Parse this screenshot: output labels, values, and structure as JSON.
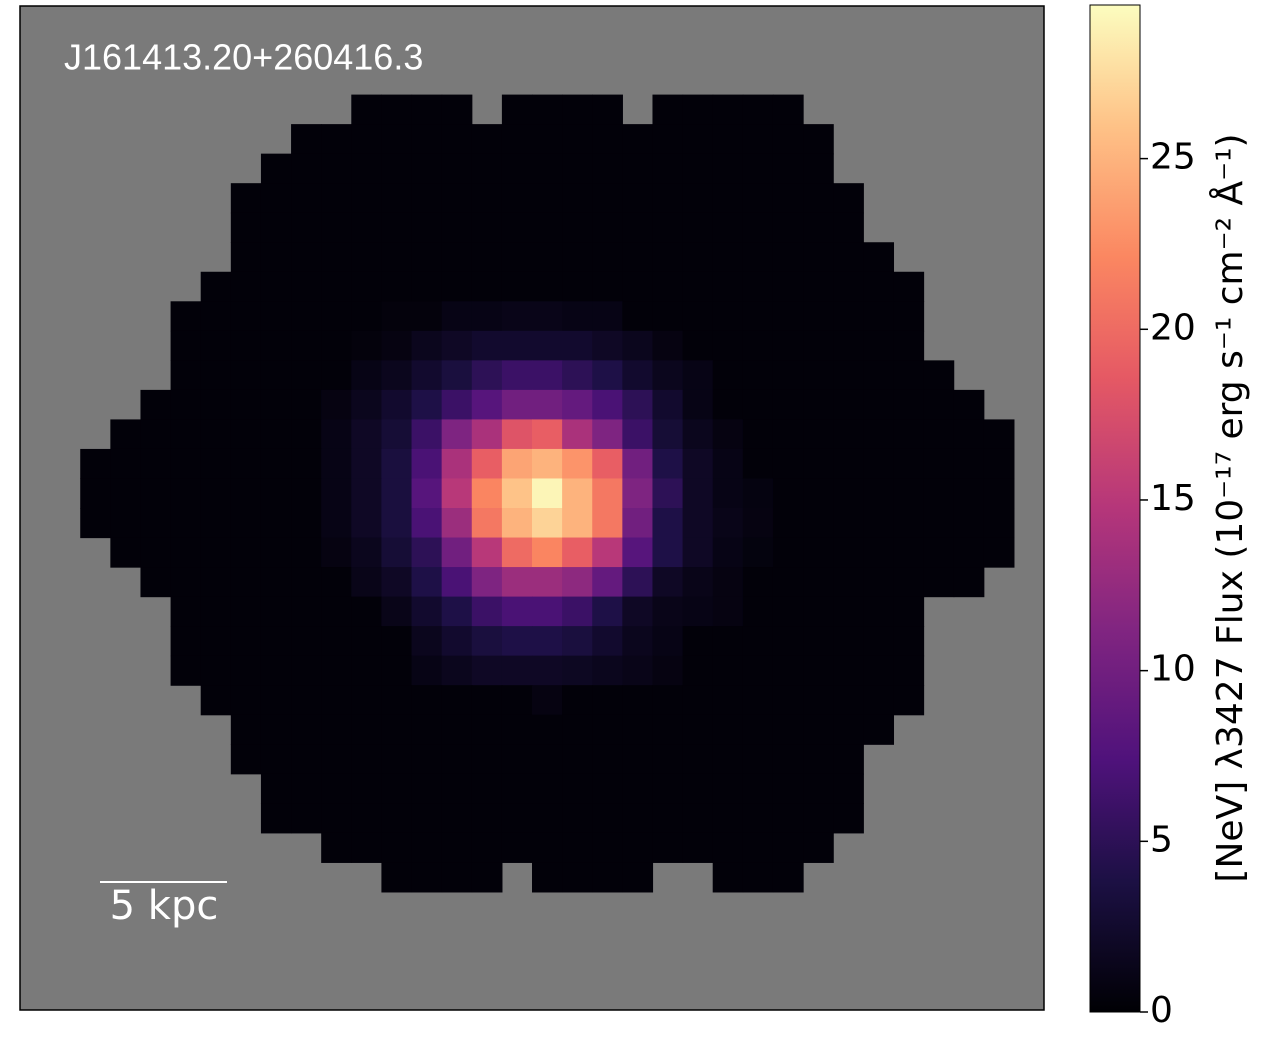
{
  "chart_data": {
    "type": "heatmap",
    "title": "J161413.20+260416.3",
    "scale_bar_label": "5 kpc",
    "colorbar_label": "[NeV] λ3427 Flux (10⁻¹⁷ erg s⁻¹ cm⁻² Å⁻¹)",
    "colormap": "magma",
    "nan_color": "#7a7a7a",
    "zlim": [
      0,
      29.5
    ],
    "zticks": [
      0,
      5,
      10,
      15,
      20,
      25
    ],
    "z": [
      [
        null,
        null,
        null,
        null,
        null,
        null,
        null,
        null,
        null,
        null,
        null,
        null,
        null,
        null,
        null,
        null,
        null,
        null,
        null,
        null,
        null,
        null,
        null,
        null,
        null,
        null,
        null,
        null,
        null,
        null,
        null,
        null,
        null,
        null
      ],
      [
        null,
        null,
        null,
        null,
        null,
        null,
        null,
        null,
        null,
        null,
        null,
        null,
        null,
        null,
        null,
        null,
        null,
        null,
        null,
        null,
        null,
        null,
        null,
        null,
        null,
        null,
        null,
        null,
        null,
        null,
        null,
        null,
        null,
        null
      ],
      [
        null,
        null,
        null,
        null,
        null,
        null,
        null,
        null,
        null,
        null,
        null,
        null,
        null,
        null,
        null,
        null,
        null,
        null,
        null,
        null,
        null,
        null,
        null,
        null,
        null,
        null,
        null,
        null,
        null,
        null,
        null,
        null,
        null,
        null
      ],
      [
        null,
        null,
        null,
        null,
        null,
        null,
        null,
        null,
        null,
        null,
        null,
        0.3,
        0.3,
        0.3,
        0.3,
        null,
        0.3,
        0.3,
        0.3,
        0.3,
        null,
        0.3,
        0.3,
        0.3,
        0.3,
        0.3,
        null,
        null,
        null,
        null,
        null,
        null,
        null,
        null
      ],
      [
        null,
        null,
        null,
        null,
        null,
        null,
        null,
        null,
        null,
        0.3,
        0.3,
        0.3,
        0.3,
        0.3,
        0.3,
        0.3,
        0.3,
        0.3,
        0.3,
        0.3,
        0.3,
        0.3,
        0.3,
        0.3,
        0.3,
        0.3,
        0.3,
        null,
        null,
        null,
        null,
        null,
        null,
        null
      ],
      [
        null,
        null,
        null,
        null,
        null,
        null,
        null,
        null,
        0.3,
        0.3,
        0.3,
        0.3,
        0.3,
        0.3,
        0.3,
        0.3,
        0.3,
        0.3,
        0.3,
        0.3,
        0.3,
        0.3,
        0.3,
        0.3,
        0.3,
        0.3,
        0.3,
        null,
        null,
        null,
        null,
        null,
        null,
        null
      ],
      [
        null,
        null,
        null,
        null,
        null,
        null,
        null,
        0.3,
        0.3,
        0.3,
        0.3,
        0.3,
        0.3,
        0.3,
        0.3,
        0.3,
        0.3,
        0.3,
        0.3,
        0.3,
        0.3,
        0.3,
        0.3,
        0.3,
        0.3,
        0.3,
        0.3,
        0.3,
        null,
        null,
        null,
        null,
        null,
        null
      ],
      [
        null,
        null,
        null,
        null,
        null,
        null,
        null,
        0.3,
        0.3,
        0.3,
        0.3,
        0.3,
        0.3,
        0.3,
        0.3,
        0.3,
        0.3,
        0.3,
        0.3,
        0.3,
        0.3,
        0.3,
        0.3,
        0.3,
        0.3,
        0.3,
        0.3,
        0.3,
        null,
        null,
        null,
        null,
        null,
        null
      ],
      [
        null,
        null,
        null,
        null,
        null,
        null,
        null,
        0.3,
        0.3,
        0.3,
        0.3,
        0.3,
        0.3,
        0.3,
        0.3,
        0.3,
        0.3,
        0.3,
        0.3,
        0.3,
        0.3,
        0.3,
        0.3,
        0.3,
        0.3,
        0.3,
        0.3,
        0.3,
        0.3,
        null,
        null,
        null,
        null,
        null
      ],
      [
        null,
        null,
        null,
        null,
        null,
        null,
        0.3,
        0.3,
        0.3,
        0.3,
        0.3,
        0.3,
        0.3,
        0.3,
        0.3,
        0.3,
        0.3,
        0.3,
        0.3,
        0.3,
        0.3,
        0.3,
        0.3,
        0.3,
        0.3,
        0.3,
        0.3,
        0.3,
        0.3,
        0.3,
        null,
        null,
        null,
        null
      ],
      [
        null,
        null,
        null,
        null,
        null,
        0.3,
        0.3,
        0.3,
        0.3,
        0.3,
        0.3,
        0.3,
        0.5,
        0.5,
        1,
        1,
        1.2,
        1.2,
        1,
        1,
        0.3,
        0.3,
        0.3,
        0.3,
        0.3,
        0.3,
        0.3,
        0.3,
        0.3,
        0.3,
        null,
        null,
        null,
        null
      ],
      [
        null,
        null,
        null,
        null,
        null,
        0.3,
        0.3,
        0.3,
        0.3,
        0.3,
        0.3,
        0.5,
        0.8,
        1.5,
        2,
        2.5,
        2.5,
        2.5,
        2.5,
        2,
        1.5,
        0.8,
        0.3,
        0.3,
        0.3,
        0.3,
        0.3,
        0.3,
        0.3,
        0.3,
        null,
        null,
        null,
        null
      ],
      [
        null,
        null,
        null,
        null,
        null,
        0.3,
        0.3,
        0.3,
        0.3,
        0.3,
        0.3,
        1,
        1.5,
        2.5,
        3.5,
        5,
        6,
        6,
        5,
        4,
        2.5,
        1.5,
        1,
        0.3,
        0.3,
        0.3,
        0.3,
        0.3,
        0.3,
        0.3,
        0.3,
        null,
        null,
        null
      ],
      [
        null,
        null,
        null,
        null,
        0.3,
        0.3,
        0.3,
        0.3,
        0.3,
        0.3,
        0.8,
        1.5,
        2.5,
        4,
        6,
        8,
        10,
        10,
        9,
        7,
        5,
        2.5,
        1,
        0.3,
        0.3,
        0.3,
        0.3,
        0.3,
        0.3,
        0.3,
        0.3,
        0.3,
        null,
        null
      ],
      [
        null,
        null,
        null,
        0.3,
        0.3,
        0.3,
        0.3,
        0.3,
        0.3,
        0.3,
        1,
        2,
        3,
        6,
        11,
        14,
        18,
        19,
        14,
        11,
        6,
        3,
        1.5,
        0.8,
        0.3,
        0.3,
        0.3,
        0.3,
        0.3,
        0.3,
        0.3,
        0.3,
        0.3,
        null
      ],
      [
        null,
        null,
        0.3,
        0.3,
        0.3,
        0.3,
        0.3,
        0.3,
        0.3,
        0.3,
        1,
        2,
        3.5,
        7,
        14,
        19,
        24,
        25,
        23,
        19,
        10,
        4,
        2,
        1,
        0.3,
        0.3,
        0.3,
        0.3,
        0.3,
        0.3,
        0.3,
        0.3,
        0.3,
        null
      ],
      [
        null,
        null,
        0.3,
        0.3,
        0.3,
        0.3,
        0.3,
        0.3,
        0.3,
        0.3,
        1,
        2,
        3.5,
        8,
        15,
        22,
        26,
        29,
        25,
        21,
        11,
        5,
        2,
        1,
        0.7,
        0.3,
        0.3,
        0.3,
        0.3,
        0.3,
        0.3,
        0.3,
        0.3,
        null
      ],
      [
        null,
        null,
        0.3,
        0.3,
        0.3,
        0.3,
        0.3,
        0.3,
        0.3,
        0.3,
        1,
        2,
        3.5,
        7,
        13,
        21,
        25,
        27,
        25,
        21,
        10,
        4,
        2,
        1.2,
        0.8,
        0.3,
        0.3,
        0.3,
        0.3,
        0.3,
        0.3,
        0.3,
        0.3,
        null
      ],
      [
        null,
        null,
        null,
        0.3,
        0.3,
        0.3,
        0.3,
        0.3,
        0.3,
        0.3,
        0.8,
        1.5,
        3,
        5,
        10,
        15,
        20,
        22,
        19,
        15,
        8,
        4,
        2,
        1,
        0.6,
        0.3,
        0.3,
        0.3,
        0.3,
        0.3,
        0.3,
        0.3,
        0.3,
        null
      ],
      [
        null,
        null,
        null,
        null,
        0.3,
        0.3,
        0.3,
        0.3,
        0.3,
        0.3,
        0.3,
        1.2,
        2,
        4,
        7,
        11,
        13,
        13,
        12,
        9,
        5,
        2,
        1.2,
        0.8,
        0.3,
        0.3,
        0.3,
        0.3,
        0.3,
        0.3,
        0.3,
        0.3,
        null,
        null
      ],
      [
        null,
        null,
        null,
        null,
        null,
        0.3,
        0.3,
        0.3,
        0.3,
        0.3,
        0.3,
        0.3,
        1.2,
        2.5,
        4,
        6,
        7,
        7,
        6,
        4,
        2,
        1.2,
        1,
        0.8,
        0.3,
        0.3,
        0.3,
        0.3,
        0.3,
        0.3,
        null,
        null,
        null,
        null
      ],
      [
        null,
        null,
        null,
        null,
        null,
        0.3,
        0.3,
        0.3,
        0.3,
        0.3,
        0.3,
        0.3,
        0.3,
        1.5,
        2.5,
        3.5,
        4,
        4,
        3.5,
        2.5,
        1.5,
        1,
        0.3,
        0.3,
        0.3,
        0.3,
        0.3,
        0.3,
        0.3,
        0.3,
        null,
        null,
        null,
        null
      ],
      [
        null,
        null,
        null,
        null,
        null,
        0.3,
        0.3,
        0.3,
        0.3,
        0.3,
        0.3,
        0.3,
        0.3,
        1,
        1.5,
        2,
        2,
        2,
        1.8,
        1.5,
        1.2,
        0.8,
        0.3,
        0.3,
        0.3,
        0.3,
        0.3,
        0.3,
        0.3,
        0.3,
        null,
        null,
        null,
        null
      ],
      [
        null,
        null,
        null,
        null,
        null,
        null,
        0.3,
        0.3,
        0.3,
        0.3,
        0.3,
        0.3,
        0.3,
        0.3,
        0.3,
        0.3,
        0.3,
        0.8,
        0.3,
        0.3,
        0.3,
        0.3,
        0.3,
        0.3,
        0.3,
        0.3,
        0.3,
        0.3,
        0.3,
        0.3,
        null,
        null,
        null,
        null
      ],
      [
        null,
        null,
        null,
        null,
        null,
        null,
        null,
        0.3,
        0.3,
        0.3,
        0.3,
        0.3,
        0.3,
        0.3,
        0.3,
        0.3,
        0.3,
        0.3,
        0.3,
        0.3,
        0.3,
        0.3,
        0.3,
        0.3,
        0.3,
        0.3,
        0.3,
        0.3,
        0.3,
        null,
        null,
        null,
        null,
        null
      ],
      [
        null,
        null,
        null,
        null,
        null,
        null,
        null,
        0.3,
        0.3,
        0.3,
        0.3,
        0.3,
        0.3,
        0.3,
        0.3,
        0.3,
        0.3,
        0.3,
        0.3,
        0.3,
        0.3,
        0.3,
        0.3,
        0.3,
        0.3,
        0.3,
        0.3,
        0.3,
        null,
        null,
        null,
        null,
        null,
        null
      ],
      [
        null,
        null,
        null,
        null,
        null,
        null,
        null,
        null,
        0.3,
        0.3,
        0.3,
        0.3,
        0.3,
        0.3,
        0.3,
        0.3,
        0.3,
        0.3,
        0.3,
        0.3,
        0.3,
        0.3,
        0.3,
        0.3,
        0.3,
        0.3,
        0.3,
        0.3,
        null,
        null,
        null,
        null,
        null,
        null
      ],
      [
        null,
        null,
        null,
        null,
        null,
        null,
        null,
        null,
        0.3,
        0.3,
        0.3,
        0.3,
        0.3,
        0.3,
        0.3,
        0.3,
        0.3,
        0.3,
        0.3,
        0.3,
        0.3,
        0.3,
        0.3,
        0.3,
        0.3,
        0.3,
        0.3,
        0.3,
        null,
        null,
        null,
        null,
        null,
        null
      ],
      [
        null,
        null,
        null,
        null,
        null,
        null,
        null,
        null,
        null,
        null,
        0.3,
        0.3,
        0.3,
        0.3,
        0.3,
        0.3,
        0.3,
        0.3,
        0.3,
        0.3,
        0.3,
        0.3,
        0.3,
        0.3,
        0.3,
        0.3,
        0.3,
        null,
        null,
        null,
        null,
        null,
        null,
        null
      ],
      [
        null,
        null,
        null,
        null,
        null,
        null,
        null,
        null,
        null,
        null,
        null,
        null,
        0.3,
        0.3,
        0.3,
        0.3,
        null,
        0.3,
        0.3,
        0.3,
        0.3,
        null,
        null,
        0.3,
        0.3,
        0.3,
        null,
        null,
        null,
        null,
        null,
        null,
        null,
        null
      ],
      [
        null,
        null,
        null,
        null,
        null,
        null,
        null,
        null,
        null,
        null,
        null,
        null,
        null,
        null,
        null,
        null,
        null,
        null,
        null,
        null,
        null,
        null,
        null,
        null,
        null,
        null,
        null,
        null,
        null,
        null,
        null,
        null,
        null,
        null
      ],
      [
        null,
        null,
        null,
        null,
        null,
        null,
        null,
        null,
        null,
        null,
        null,
        null,
        null,
        null,
        null,
        null,
        null,
        null,
        null,
        null,
        null,
        null,
        null,
        null,
        null,
        null,
        null,
        null,
        null,
        null,
        null,
        null,
        null,
        null
      ],
      [
        null,
        null,
        null,
        null,
        null,
        null,
        null,
        null,
        null,
        null,
        null,
        null,
        null,
        null,
        null,
        null,
        null,
        null,
        null,
        null,
        null,
        null,
        null,
        null,
        null,
        null,
        null,
        null,
        null,
        null,
        null,
        null,
        null,
        null
      ],
      [
        null,
        null,
        null,
        null,
        null,
        null,
        null,
        null,
        null,
        null,
        null,
        null,
        null,
        null,
        null,
        null,
        null,
        null,
        null,
        null,
        null,
        null,
        null,
        null,
        null,
        null,
        null,
        null,
        null,
        null,
        null,
        null,
        null,
        null
      ]
    ]
  }
}
